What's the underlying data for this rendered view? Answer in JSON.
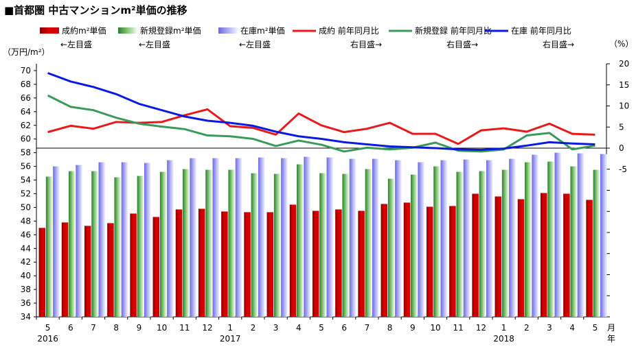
{
  "title": "■首都圏 中古マンションm²単価の推移",
  "y_left_unit": "（万円/m²）",
  "y_right_unit": "（%）",
  "x_unit": "月\n年",
  "legend": [
    {
      "label": "成約m²単価",
      "sub": "←左目盛",
      "kind": "bar",
      "color": "#d40000"
    },
    {
      "label": "新規登録m²単価",
      "sub": "←左目盛",
      "kind": "bar",
      "color": "#7ec46f"
    },
    {
      "label": "在庫m²単価",
      "sub": "←左目盛",
      "kind": "bar",
      "color": "#a8a8f0"
    },
    {
      "label": "成約 前年同月比",
      "sub": "右目盛→",
      "kind": "line",
      "color": "#e8191a"
    },
    {
      "label": "新規登録 前年同月比",
      "sub": "右目盛→",
      "kind": "line",
      "color": "#3a9a5a"
    },
    {
      "label": "在庫 前年同月比",
      "sub": "右目盛→",
      "kind": "line",
      "color": "#0a1ae0"
    }
  ],
  "chart_data": {
    "type": "bar",
    "categories": [
      "5",
      "6",
      "7",
      "8",
      "9",
      "10",
      "11",
      "12",
      "1",
      "2",
      "3",
      "4",
      "5",
      "6",
      "7",
      "8",
      "9",
      "10",
      "11",
      "12",
      "1",
      "2",
      "3",
      "4",
      "5"
    ],
    "year_labels": [
      {
        "index": 0,
        "label": "2016"
      },
      {
        "index": 8,
        "label": "2017"
      },
      {
        "index": 20,
        "label": "2018"
      }
    ],
    "ylim_left": [
      34,
      71
    ],
    "yticks_left": [
      34,
      36,
      38,
      40,
      42,
      44,
      46,
      48,
      50,
      52,
      54,
      56,
      58,
      60,
      62,
      64,
      66,
      68,
      70
    ],
    "ylim_right": [
      -40,
      20
    ],
    "yticks_right": [
      -5,
      0,
      5,
      10,
      15,
      20
    ],
    "series": [
      {
        "name": "成約m²単価",
        "kind": "bar",
        "axis": "left",
        "color": "#d40000",
        "values": [
          47.0,
          47.8,
          47.3,
          47.7,
          49.1,
          48.6,
          49.7,
          49.8,
          49.4,
          49.3,
          49.3,
          50.4,
          49.5,
          49.7,
          49.5,
          50.5,
          50.7,
          50.1,
          50.2,
          52.0,
          51.6,
          51.2,
          52.1,
          52.0,
          51.1
        ]
      },
      {
        "name": "新規登録m²単価",
        "kind": "bar",
        "axis": "left",
        "color": "#7ec46f",
        "values": [
          54.5,
          55.3,
          55.3,
          54.4,
          54.6,
          55.2,
          55.6,
          55.5,
          55.5,
          55.0,
          54.9,
          56.3,
          55.0,
          54.9,
          55.6,
          54.2,
          54.8,
          56.0,
          55.2,
          55.3,
          55.5,
          56.6,
          56.7,
          56.0,
          55.5
        ]
      },
      {
        "name": "在庫m²単価",
        "kind": "bar",
        "axis": "left",
        "color": "#a8a8f0",
        "values": [
          56.0,
          56.2,
          56.6,
          56.6,
          56.5,
          56.9,
          57.2,
          57.2,
          57.2,
          57.3,
          57.2,
          57.4,
          57.3,
          57.1,
          57.1,
          56.9,
          56.6,
          56.9,
          57.0,
          56.9,
          57.1,
          57.7,
          58.0,
          57.9,
          57.8
        ]
      },
      {
        "name": "成約 前年同月比",
        "kind": "line",
        "axis": "right",
        "color": "#e8191a",
        "values": [
          3.8,
          5.3,
          4.6,
          6.2,
          6.0,
          6.2,
          7.8,
          9.2,
          5.2,
          4.8,
          3.2,
          8.2,
          5.4,
          3.8,
          4.6,
          6.0,
          3.4,
          3.4,
          1.0,
          4.2,
          4.7,
          3.9,
          5.8,
          3.4,
          3.2
        ]
      },
      {
        "name": "新規登録 前年同月比",
        "kind": "line",
        "axis": "right",
        "color": "#3a9a5a",
        "values": [
          12.5,
          9.8,
          9.0,
          7.2,
          5.8,
          5.1,
          4.5,
          3.0,
          2.8,
          2.2,
          0.5,
          1.8,
          0.8,
          -0.8,
          0.1,
          -0.3,
          0.1,
          1.3,
          -0.6,
          -0.8,
          -0.3,
          3.0,
          3.6,
          -0.3,
          0.6
        ]
      },
      {
        "name": "在庫 前年同月比",
        "kind": "line",
        "axis": "right",
        "color": "#0a1ae0",
        "values": [
          17.8,
          15.8,
          14.5,
          12.8,
          10.5,
          9.0,
          7.5,
          6.5,
          6.0,
          5.3,
          3.9,
          2.8,
          2.2,
          1.4,
          0.9,
          0.4,
          0.2,
          0.0,
          -0.3,
          -0.4,
          -0.1,
          0.6,
          1.4,
          1.1,
          0.9
        ]
      }
    ]
  }
}
